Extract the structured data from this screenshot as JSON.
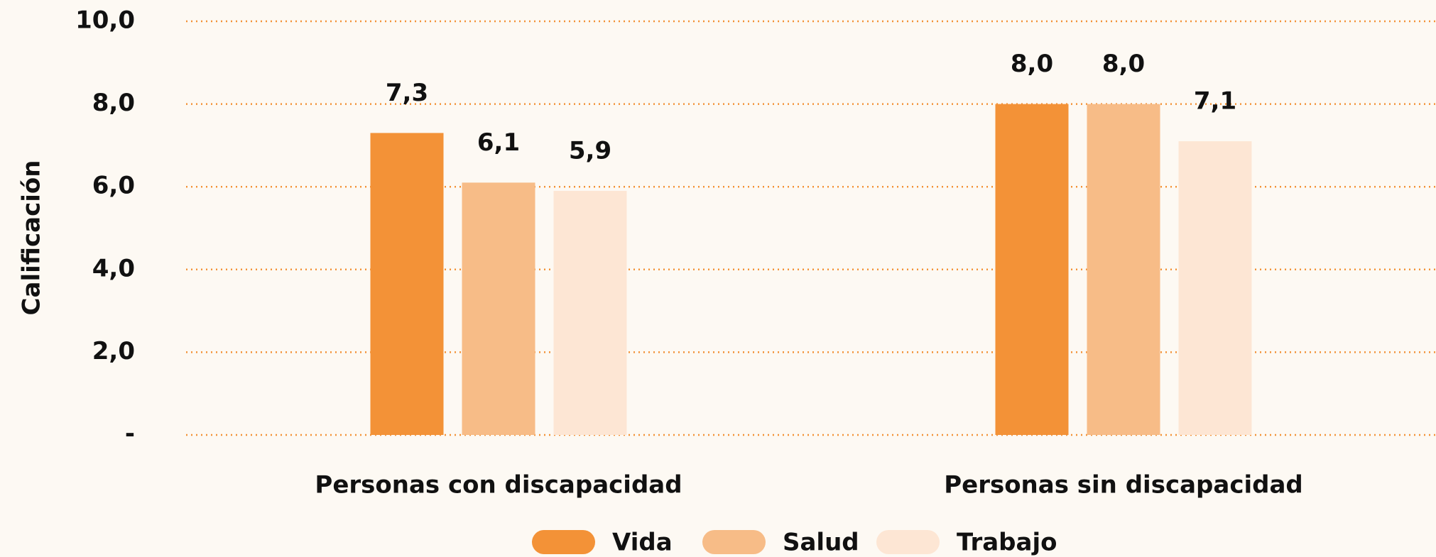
{
  "chart_data": {
    "type": "bar",
    "y_label": "Calificación",
    "categories": [
      "Personas con discapacidad",
      "Personas sin discapacidad"
    ],
    "series": [
      {
        "name": "Vida",
        "color": "#f39237",
        "values": [
          7.3,
          8.0
        ],
        "value_labels": [
          "7,3",
          "8,0"
        ]
      },
      {
        "name": "Salud",
        "color": "#f7bc87",
        "values": [
          6.1,
          8.0
        ],
        "value_labels": [
          "6,1",
          "8,0"
        ]
      },
      {
        "name": "Trabajo",
        "color": "#fde6d4",
        "values": [
          5.9,
          7.1
        ],
        "value_labels": [
          "5,9",
          "7,1"
        ]
      }
    ],
    "ylim": [
      0,
      10
    ],
    "yticks": [
      {
        "value": 0,
        "label": "-"
      },
      {
        "value": 2,
        "label": "2,0"
      },
      {
        "value": 4,
        "label": "4,0"
      },
      {
        "value": 6,
        "label": "6,0"
      },
      {
        "value": 8,
        "label": "8,0"
      },
      {
        "value": 10,
        "label": "10,0"
      }
    ],
    "grid": true,
    "legend": "bottom"
  }
}
